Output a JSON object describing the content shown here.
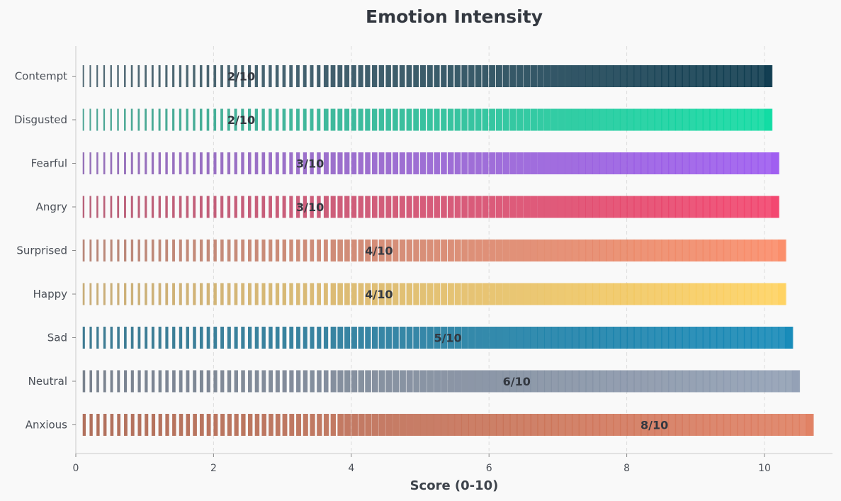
{
  "chart_data": {
    "type": "bar",
    "orientation": "horizontal",
    "title": "Emotion Intensity",
    "xlabel": "Score (0-10)",
    "ylabel": "",
    "xlim": [
      0,
      11
    ],
    "xticks": [
      0,
      2,
      4,
      6,
      8,
      10
    ],
    "grid": "vertical dashed",
    "categories": [
      "Anxious",
      "Neutral",
      "Sad",
      "Happy",
      "Surprised",
      "Angry",
      "Fearful",
      "Disgusted",
      "Contempt"
    ],
    "values": [
      8,
      6,
      5,
      4,
      4,
      3,
      3,
      2,
      2
    ],
    "data_labels": [
      "8/10",
      "6/10",
      "5/10",
      "4/10",
      "4/10",
      "3/10",
      "3/10",
      "2/10",
      "2/10"
    ],
    "bar_extent": [
      10.7,
      10.5,
      10.4,
      10.3,
      10.3,
      10.2,
      10.2,
      10.1,
      10.1
    ],
    "colors": {
      "Anxious": {
        "start": "#a8614a",
        "end": "#e07f62"
      },
      "Neutral": {
        "start": "#6a7482",
        "end": "#919fb4"
      },
      "Sad": {
        "start": "#2a6d86",
        "end": "#1489b8"
      },
      "Happy": {
        "start": "#c2a46a",
        "end": "#ffd260"
      },
      "Surprised": {
        "start": "#b07a6a",
        "end": "#fb8c68"
      },
      "Angry": {
        "start": "#b0506a",
        "end": "#f3446d"
      },
      "Fearful": {
        "start": "#8a62b0",
        "end": "#9d5bf0"
      },
      "Disgusted": {
        "start": "#3a9a88",
        "end": "#0edba2"
      },
      "Contempt": {
        "start": "#405a66",
        "end": "#0c3a4e"
      }
    }
  }
}
